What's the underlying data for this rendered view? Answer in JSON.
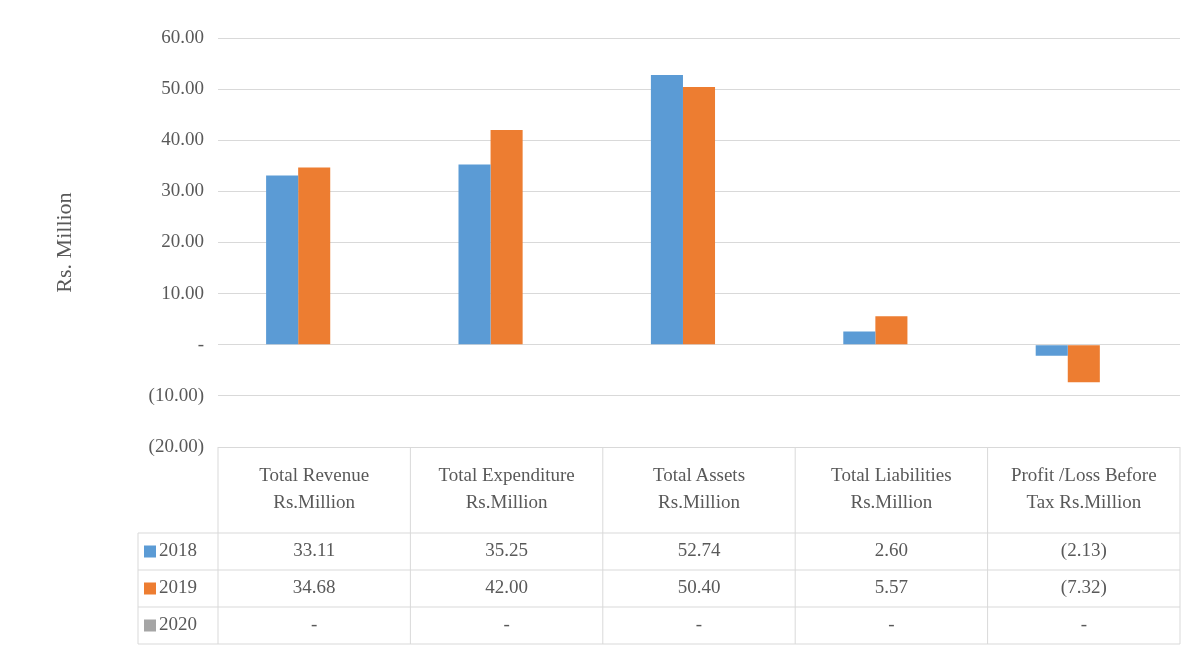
{
  "chart_data": {
    "type": "bar",
    "ylabel": "Rs. Million",
    "categories": [
      "Total Revenue Rs.Million",
      "Total Expenditure Rs.Million",
      "Total Assets Rs.Million",
      "Total Liabilities Rs.Million",
      "Profit /Loss Before Tax Rs.Million"
    ],
    "series": [
      {
        "name": "2018",
        "color": "#5b9bd5",
        "values": [
          33.11,
          35.25,
          52.74,
          2.6,
          -2.13
        ],
        "value_labels": [
          "33.11",
          "35.25",
          "52.74",
          "2.60",
          "(2.13)"
        ]
      },
      {
        "name": "2019",
        "color": "#ed7d31",
        "values": [
          34.68,
          42.0,
          50.4,
          5.57,
          -7.32
        ],
        "value_labels": [
          "34.68",
          "42.00",
          "50.40",
          "5.57",
          "(7.32)"
        ]
      },
      {
        "name": "2020",
        "color": "#a5a5a5",
        "values": [
          null,
          null,
          null,
          null,
          null
        ],
        "value_labels": [
          "-",
          "-",
          "-",
          "-",
          "-"
        ]
      }
    ],
    "ylim": [
      -20,
      60
    ],
    "yticks": [
      {
        "value": -20,
        "label": "(20.00)"
      },
      {
        "value": -10,
        "label": "(10.00)"
      },
      {
        "value": 0,
        "label": "-"
      },
      {
        "value": 10,
        "label": "10.00"
      },
      {
        "value": 20,
        "label": "20.00"
      },
      {
        "value": 30,
        "label": "30.00"
      },
      {
        "value": 40,
        "label": "40.00"
      },
      {
        "value": 50,
        "label": "50.00"
      },
      {
        "value": 60,
        "label": "60.00"
      }
    ],
    "grid": "y",
    "legend": "bottom"
  }
}
